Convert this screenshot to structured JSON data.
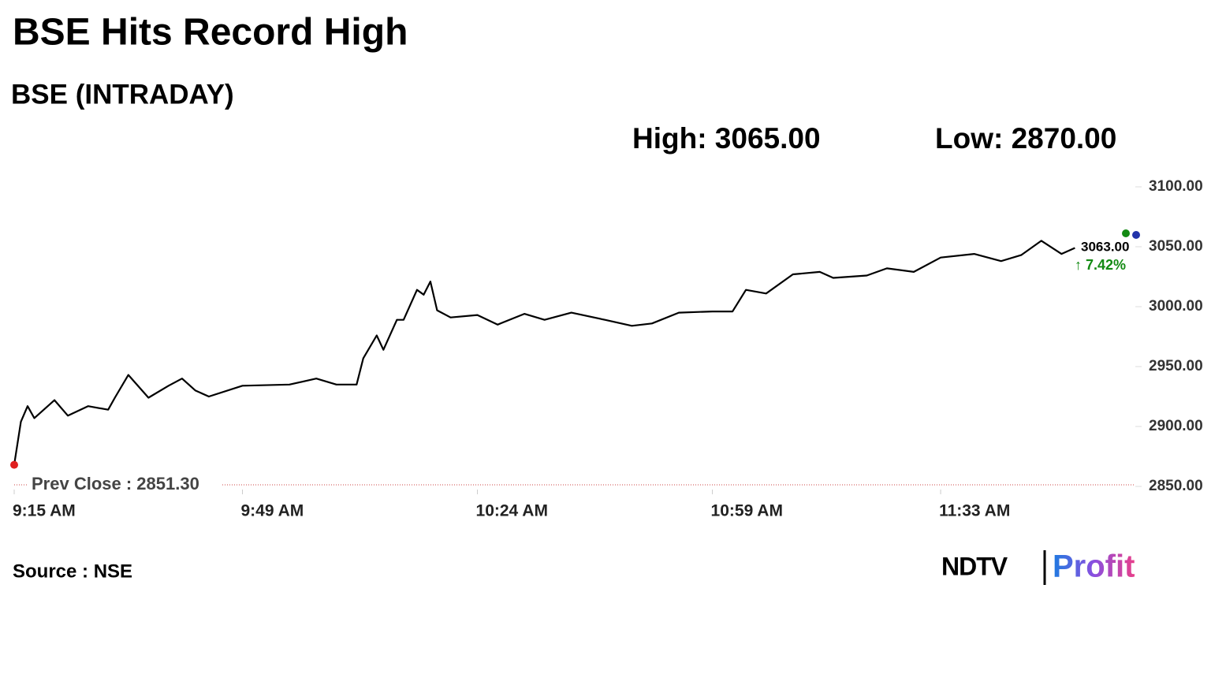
{
  "chart_data": {
    "type": "line",
    "title": "BSE Hits Record High",
    "subtitle": "BSE (INTRADAY)",
    "high": "High: 3065.00",
    "low": "Low: 2870.00",
    "last_price": "3063.00",
    "change": "↑ 7.42%",
    "source": "Source : NSE",
    "brand": [
      "NDTV",
      "Profit"
    ],
    "color": "#000000",
    "x": [
      "9:15 AM",
      "9:16 AM",
      "9:17 AM",
      "9:18 AM",
      "9:21 AM",
      "9:23 AM",
      "9:26 AM",
      "9:29 AM",
      "9:30 AM",
      "9:32 AM",
      "9:35 AM",
      "9:38 AM",
      "9:40 AM",
      "9:42 AM",
      "9:44 AM",
      "9:49 AM",
      "9:56 AM",
      "10:00 AM",
      "10:03 AM",
      "10:06 AM",
      "10:07 AM",
      "10:09 AM",
      "10:10 AM",
      "10:12 AM",
      "10:13 AM",
      "10:15 AM",
      "10:16 AM",
      "10:17 AM",
      "10:18 AM",
      "10:20 AM",
      "10:24 AM",
      "10:27 AM",
      "10:31 AM",
      "10:34 AM",
      "10:38 AM",
      "10:43 AM",
      "10:47 AM",
      "10:50 AM",
      "10:54 AM",
      "10:59 AM",
      "11:02 AM",
      "11:04 AM",
      "11:07 AM",
      "11:11 AM",
      "11:15 AM",
      "11:17 AM",
      "11:22 AM",
      "11:25 AM",
      "11:29 AM",
      "11:33 AM",
      "11:38 AM",
      "11:42 AM",
      "11:45 AM",
      "11:48 AM",
      "11:51 AM",
      "11:53 AM"
    ],
    "values": [
      2868,
      2904,
      2917,
      2907,
      2922,
      2909,
      2917,
      2914,
      2924,
      2943,
      2924,
      2934,
      2940,
      2930,
      2925,
      2934,
      2935,
      2940,
      2935,
      2935,
      2957,
      2976,
      2964,
      2989,
      2989,
      3014,
      3010,
      3021,
      2997,
      2991,
      2993,
      2985,
      2994,
      2989,
      2995,
      2989,
      2984,
      2986,
      2995,
      2996,
      2996,
      3014,
      3011,
      3027,
      3029,
      3024,
      3026,
      3032,
      3029,
      3041,
      3044,
      3038,
      3043,
      3055,
      3044,
      3049
    ],
    "xlim": [
      "9:15 AM",
      "12:02 PM"
    ],
    "xticks": [
      "9:15 AM",
      "9:49 AM",
      "10:24 AM",
      "10:59 AM",
      "11:33 AM"
    ],
    "ylim": [
      2850,
      3100
    ],
    "yticks": [
      {
        "value": 2850,
        "label": "2850.00"
      },
      {
        "value": 2900,
        "label": "2900.00"
      },
      {
        "value": 2950,
        "label": "2950.00"
      },
      {
        "value": 3000,
        "label": "3000.00"
      },
      {
        "value": 3050,
        "label": "3050.00"
      },
      {
        "value": 3100,
        "label": "3100.00"
      }
    ],
    "prev_close": {
      "value": 2851.3,
      "label": "Prev Close : 2851.30"
    }
  }
}
